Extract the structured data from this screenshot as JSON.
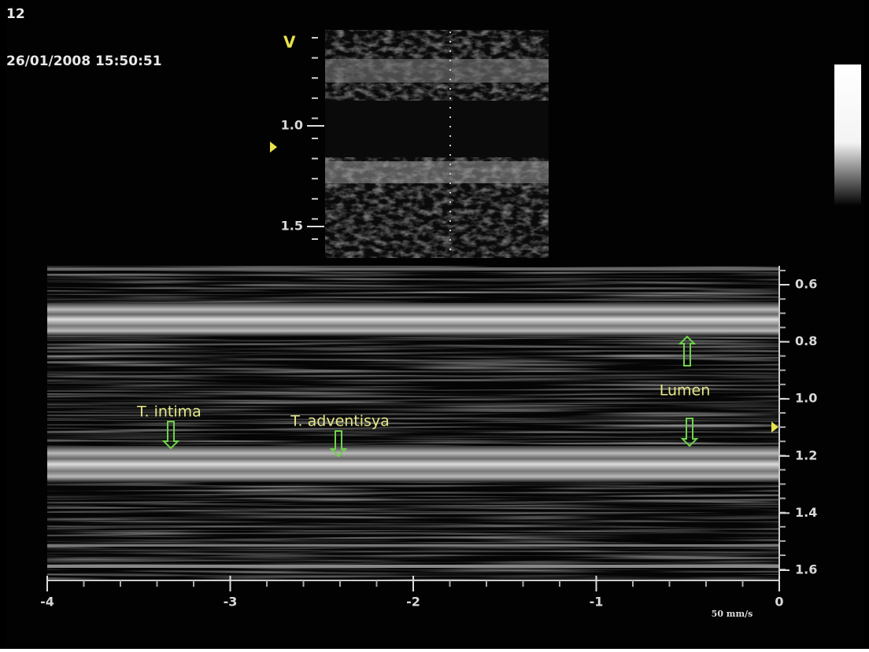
{
  "header": {
    "frame": "12",
    "timestamp": "26/01/2008 15:50:51"
  },
  "bmode": {
    "marker": "V",
    "depth_labels": [
      "1.0",
      "1.5"
    ]
  },
  "mmode": {
    "depth_labels": [
      "0.6",
      "0.8",
      "1.0",
      "1.2",
      "1.4",
      "1.6"
    ],
    "time_labels": [
      "-4",
      "-3",
      "-2",
      "-1",
      "0"
    ],
    "sweep_speed": "50 mm/s",
    "annotations": [
      "T. intima",
      "T. adventisya",
      "Lumen"
    ]
  }
}
